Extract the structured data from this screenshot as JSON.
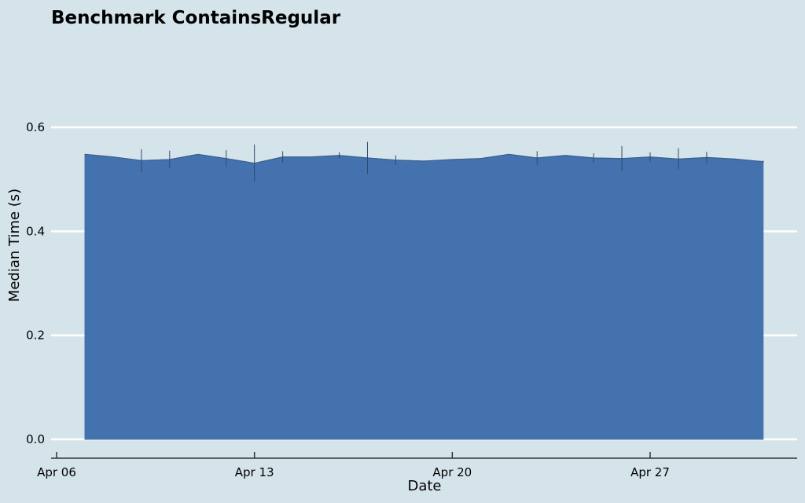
{
  "chart_data": {
    "type": "area",
    "title": "Benchmark ContainsRegular",
    "xlabel": "Date",
    "ylabel": "Median Time (s)",
    "x_axis_type": "date",
    "xlim": [
      "2024-04-06",
      "2024-05-02"
    ],
    "ylim": [
      -0.02,
      0.7
    ],
    "x_ticks": [
      {
        "date": "2024-04-06",
        "label": "Apr 06"
      },
      {
        "date": "2024-04-13",
        "label": "Apr 13"
      },
      {
        "date": "2024-04-20",
        "label": "Apr 20"
      },
      {
        "date": "2024-04-27",
        "label": "Apr 27"
      }
    ],
    "y_ticks": [
      {
        "value": 0.0,
        "label": "0.0"
      },
      {
        "value": 0.2,
        "label": "0.2"
      },
      {
        "value": 0.4,
        "label": "0.4"
      },
      {
        "value": 0.6,
        "label": "0.6"
      }
    ],
    "grid": "horizontal",
    "colors": {
      "background": "#d5e4eb",
      "fill": "#4472ae",
      "grid": "#ffffff",
      "errorbar": "#2f4a6e",
      "axis": "#333333"
    },
    "series": [
      {
        "x": [
          "2024-04-07",
          "2024-04-08",
          "2024-04-09",
          "2024-04-10",
          "2024-04-11",
          "2024-04-12",
          "2024-04-13",
          "2024-04-14",
          "2024-04-15",
          "2024-04-16",
          "2024-04-17",
          "2024-04-18",
          "2024-04-19",
          "2024-04-20",
          "2024-04-21",
          "2024-04-22",
          "2024-04-23",
          "2024-04-24",
          "2024-04-25",
          "2024-04-26",
          "2024-04-27",
          "2024-04-28",
          "2024-04-29",
          "2024-04-30",
          "2024-05-01"
        ],
        "y": [
          0.548,
          0.543,
          0.536,
          0.538,
          0.548,
          0.54,
          0.531,
          0.543,
          0.543,
          0.546,
          0.541,
          0.537,
          0.535,
          0.538,
          0.54,
          0.548,
          0.541,
          0.546,
          0.541,
          0.54,
          0.543,
          0.539,
          0.542,
          0.539,
          0.534
        ],
        "err": [
          0.0,
          0.0,
          0.022,
          0.017,
          0.0,
          0.016,
          0.036,
          0.011,
          0.0,
          0.006,
          0.031,
          0.009,
          0.0,
          0.0,
          0.0,
          0.0,
          0.013,
          0.0,
          0.009,
          0.024,
          0.009,
          0.021,
          0.011,
          0.0,
          0.002
        ]
      }
    ]
  }
}
